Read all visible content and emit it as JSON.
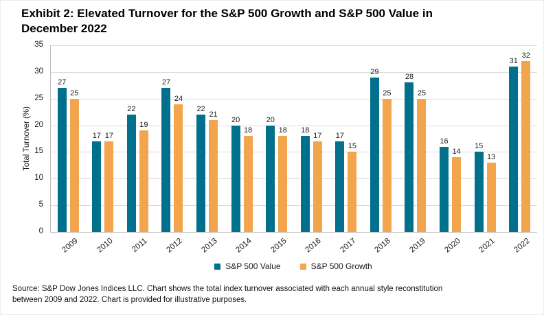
{
  "title_lines": [
    "Exhibit 2: Elevated Turnover for the S&P 500 Growth and S&P 500 Value in",
    "December 2022"
  ],
  "chart_data": {
    "type": "bar",
    "title": "Exhibit 2: Elevated Turnover for the S&P 500 Growth and S&P 500 Value in December 2022",
    "categories": [
      "2009",
      "2010",
      "2011",
      "2012",
      "2013",
      "2014",
      "2015",
      "2016",
      "2017",
      "2018",
      "2019",
      "2020",
      "2021",
      "2022"
    ],
    "series": [
      {
        "name": "S&P 500 Value",
        "color": "#00708C",
        "values": [
          27,
          17,
          22,
          27,
          22,
          20,
          20,
          18,
          17,
          29,
          28,
          16,
          15,
          31
        ]
      },
      {
        "name": "S&P 500 Growth",
        "color": "#F2A54C",
        "values": [
          25,
          17,
          19,
          24,
          21,
          18,
          18,
          17,
          15,
          25,
          25,
          14,
          13,
          32
        ]
      }
    ],
    "xlabel": "",
    "ylabel": "Total Turnover (%)",
    "ylim": [
      0,
      35
    ],
    "ytick_step": 5,
    "grid": true,
    "legend_position": "bottom",
    "data_labels": true
  },
  "footer_lines": [
    "Source: S&P Dow Jones Indices LLC. Chart shows the total index turnover associated with each annual style reconstitution",
    "between 2009 and 2022. Chart is provided for illustrative purposes."
  ],
  "colors": {
    "gridline": "#D9D9D9",
    "axis": "#BFBFBF",
    "text": "#1A1A1A"
  }
}
